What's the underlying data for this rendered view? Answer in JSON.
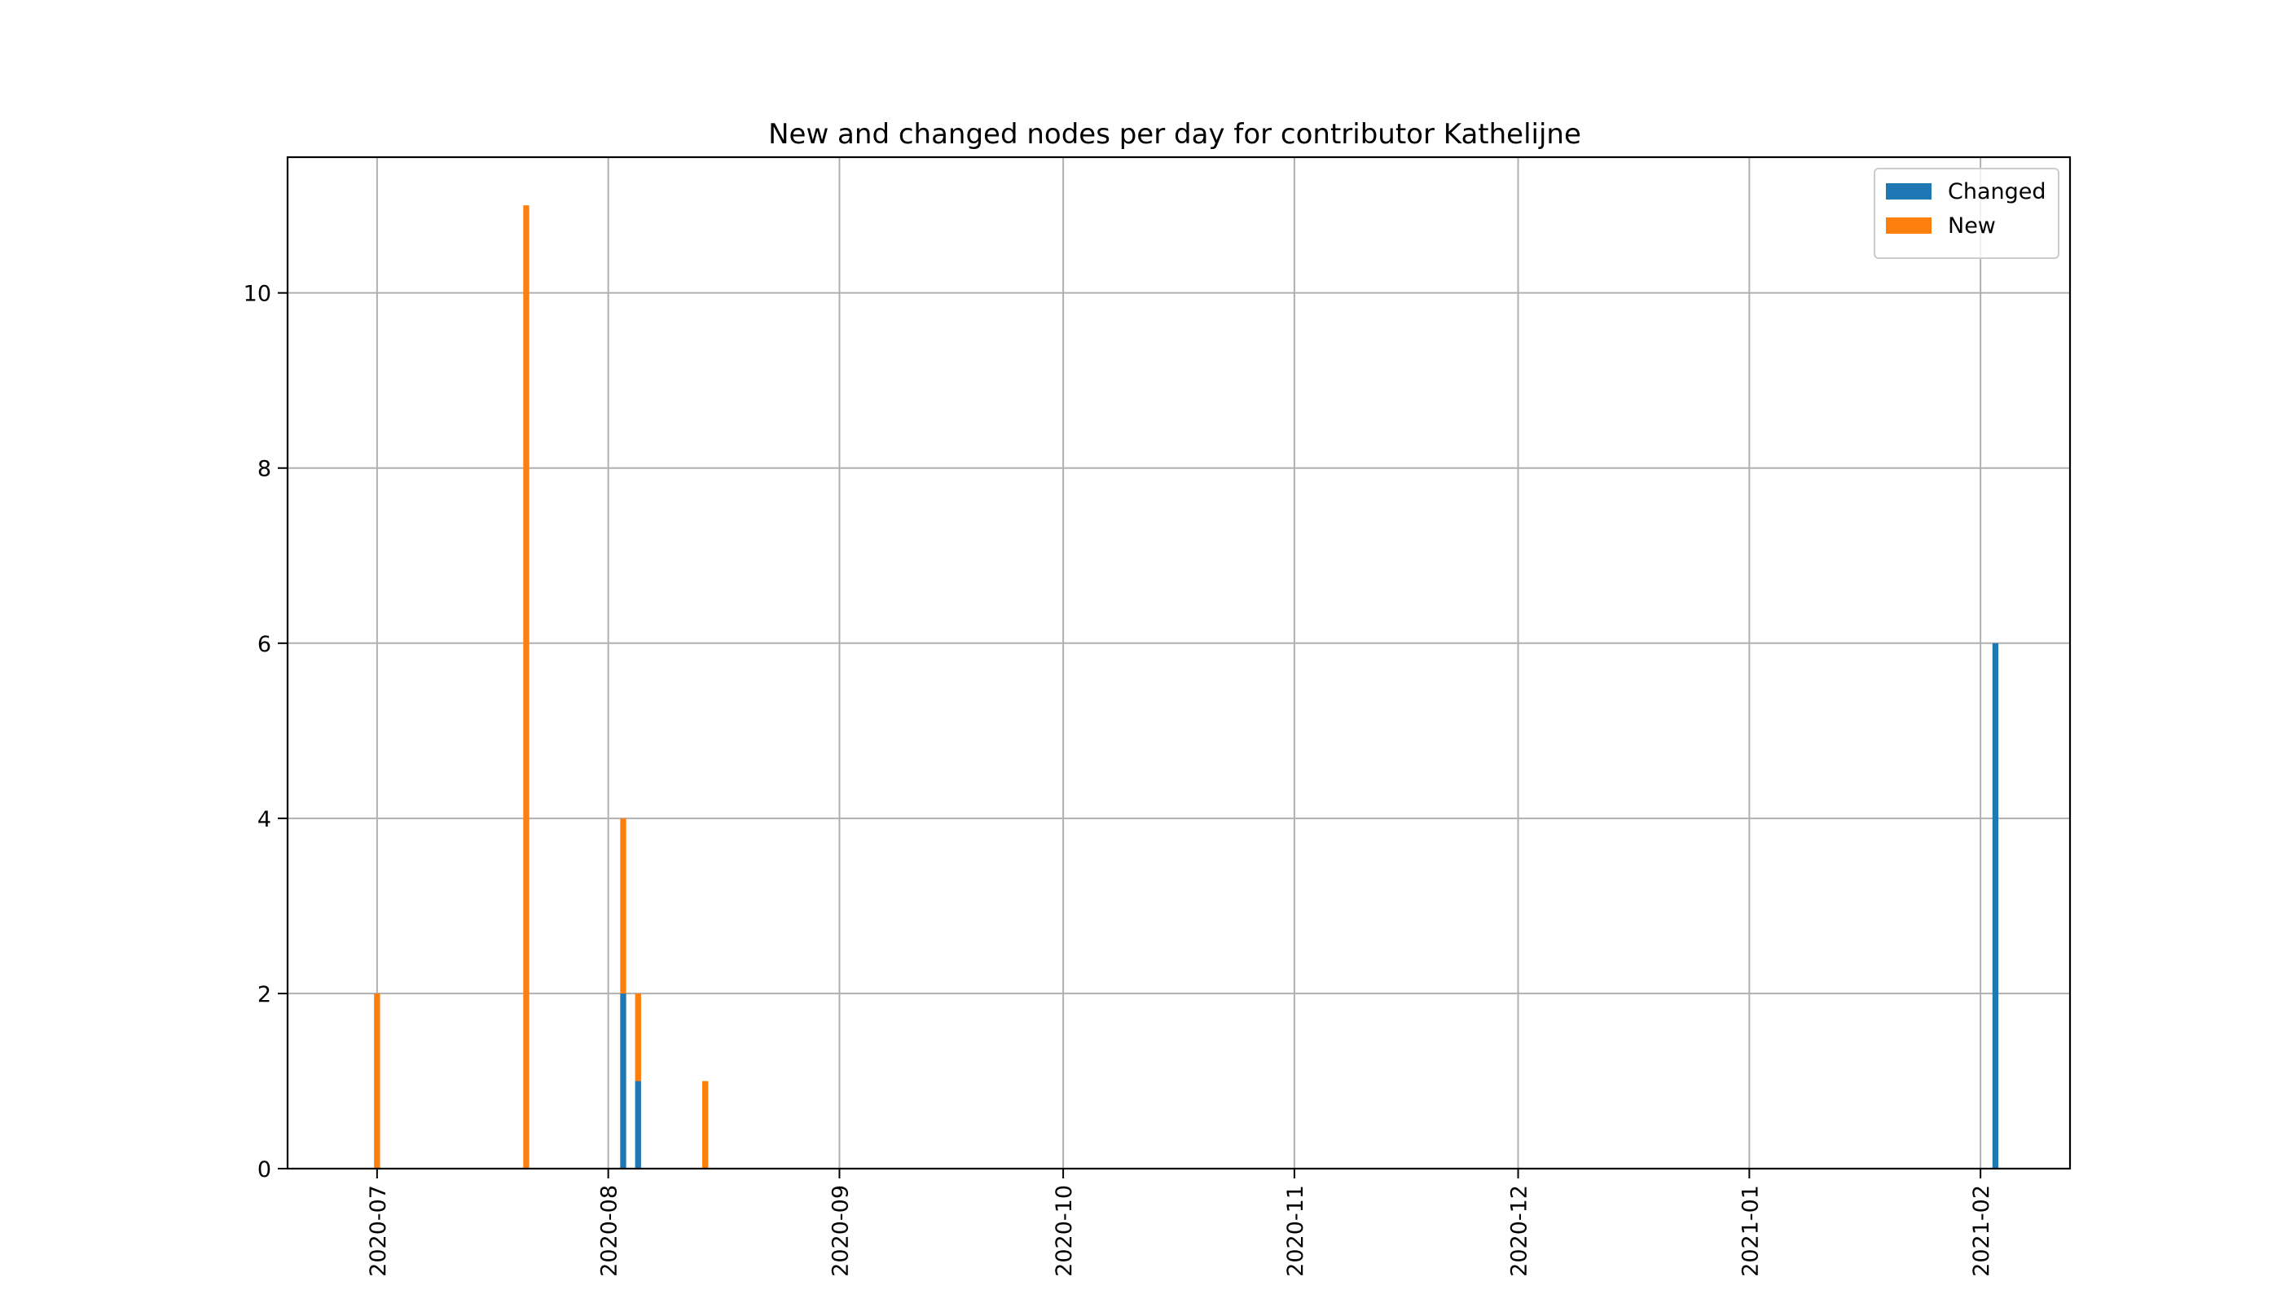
{
  "chart_data": {
    "type": "bar",
    "stacked": true,
    "title": "New and changed nodes per day for contributor Kathelijne",
    "xlabel": "",
    "ylabel": "",
    "x_type": "date",
    "xlim": [
      "2020-06-19",
      "2021-02-13"
    ],
    "ylim": [
      0,
      11.55
    ],
    "grid": true,
    "legend_position": "top-right",
    "x_tick_labels": [
      "2020-07",
      "2020-08",
      "2020-09",
      "2020-10",
      "2020-11",
      "2020-12",
      "2021-01",
      "2021-02"
    ],
    "x_tick_dates": [
      "2020-07-01",
      "2020-08-01",
      "2020-09-01",
      "2020-10-01",
      "2020-11-01",
      "2020-12-01",
      "2021-01-01",
      "2021-02-01"
    ],
    "y_ticks": [
      0,
      2,
      4,
      6,
      8,
      10
    ],
    "x": [
      "2020-07-01",
      "2020-07-21",
      "2020-08-03",
      "2020-08-05",
      "2020-08-14",
      "2021-02-03"
    ],
    "series": [
      {
        "name": "Changed",
        "color": "#1f77b4",
        "values": [
          0,
          0,
          2,
          1,
          0,
          6
        ]
      },
      {
        "name": "New",
        "color": "#ff7f0e",
        "values": [
          2,
          11,
          2,
          1,
          1,
          0
        ]
      }
    ]
  }
}
